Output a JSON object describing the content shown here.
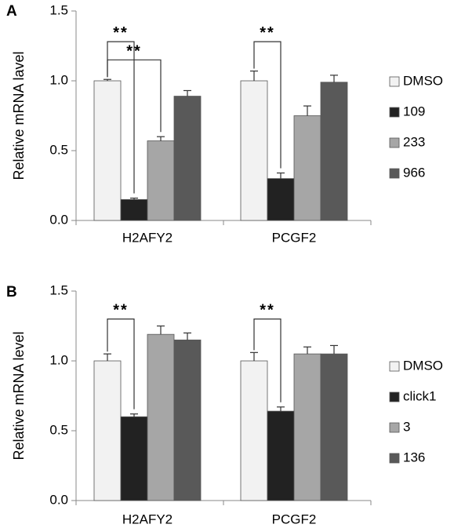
{
  "colors": {
    "DMSO": "#f2f2f2",
    "dark": "#222222",
    "light_gray": "#a6a6a6",
    "mid_gray": "#595959",
    "edge": "#555555"
  },
  "chart_data": [
    {
      "panel": "A",
      "type": "bar",
      "ylabel": "Relative mRNA lavel",
      "ylim": [
        0,
        1.5
      ],
      "yticks": [
        "0.0",
        "0.5",
        "1.0",
        "1.5"
      ],
      "categories": [
        "H2AFY2",
        "PCGF2"
      ],
      "legend_position": "right",
      "series": [
        {
          "name": "DMSO",
          "color": "#f2f2f2",
          "values": [
            1.0,
            1.0
          ],
          "errors": [
            0.01,
            0.07
          ]
        },
        {
          "name": "109",
          "color": "#222222",
          "values": [
            0.15,
            0.3
          ],
          "errors": [
            0.01,
            0.04
          ]
        },
        {
          "name": "233",
          "color": "#a6a6a6",
          "values": [
            0.57,
            0.75
          ],
          "errors": [
            0.03,
            0.07
          ]
        },
        {
          "name": "966",
          "color": "#595959",
          "values": [
            0.89,
            0.99
          ],
          "errors": [
            0.04,
            0.05
          ]
        }
      ],
      "significance": [
        {
          "category": 0,
          "from": 0,
          "to": 1,
          "label": "**",
          "top": 1.28
        },
        {
          "category": 0,
          "from": 0,
          "to": 2,
          "label": "**",
          "top": 1.15
        },
        {
          "category": 1,
          "from": 0,
          "to": 1,
          "label": "**",
          "top": 1.28
        }
      ]
    },
    {
      "panel": "B",
      "type": "bar",
      "ylabel": "Relative mRNA level",
      "ylim": [
        0,
        1.5
      ],
      "yticks": [
        "0.0",
        "0.5",
        "1.0",
        "1.5"
      ],
      "categories": [
        "H2AFY2",
        "PCGF2"
      ],
      "legend_position": "right",
      "series": [
        {
          "name": "DMSO",
          "color": "#f2f2f2",
          "values": [
            1.0,
            1.0
          ],
          "errors": [
            0.05,
            0.06
          ]
        },
        {
          "name": "click1",
          "color": "#222222",
          "values": [
            0.6,
            0.64
          ],
          "errors": [
            0.02,
            0.03
          ]
        },
        {
          "name": "3",
          "color": "#a6a6a6",
          "values": [
            1.19,
            1.05
          ],
          "errors": [
            0.06,
            0.05
          ]
        },
        {
          "name": "136",
          "color": "#595959",
          "values": [
            1.15,
            1.05
          ],
          "errors": [
            0.05,
            0.06
          ]
        }
      ],
      "significance": [
        {
          "category": 0,
          "from": 0,
          "to": 1,
          "label": "**",
          "top": 1.3
        },
        {
          "category": 1,
          "from": 0,
          "to": 1,
          "label": "**",
          "top": 1.3
        }
      ]
    }
  ]
}
